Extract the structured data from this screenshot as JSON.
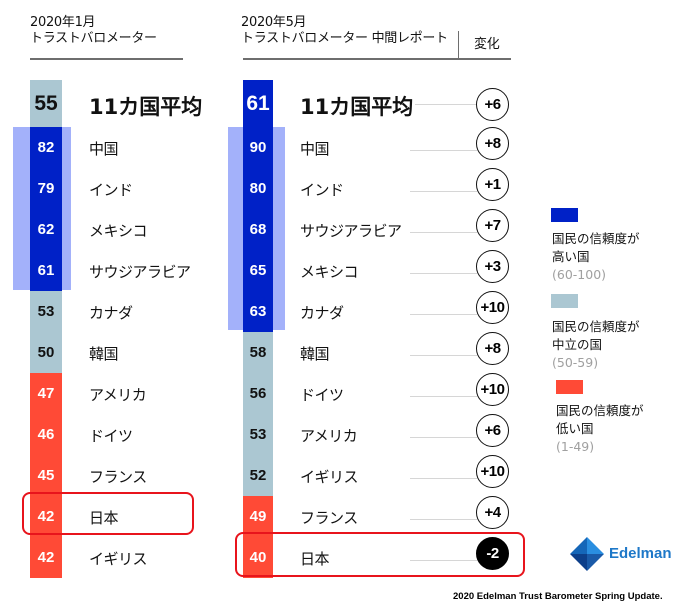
{
  "colors": {
    "high": "#0021c7",
    "neutral": "#abc7d2",
    "low": "#ff4a36",
    "halo": "#a3b1fa",
    "highlight_border": "#e8141c",
    "logo": "#1e78c8"
  },
  "left_header": {
    "line1": "2020年1月",
    "line2": "トラストバロメーター"
  },
  "right_header": {
    "line1": "2020年5月",
    "line2": "トラストバロメーター 中間レポート",
    "change_label": "変化"
  },
  "left_rows": [
    {
      "value": "55",
      "label": "11カ国平均",
      "category": "neutral",
      "average": true
    },
    {
      "value": "82",
      "label": "中国",
      "category": "high"
    },
    {
      "value": "79",
      "label": "インド",
      "category": "high"
    },
    {
      "value": "62",
      "label": "メキシコ",
      "category": "high"
    },
    {
      "value": "61",
      "label": "サウジアラビア",
      "category": "high"
    },
    {
      "value": "53",
      "label": "カナダ",
      "category": "neutral"
    },
    {
      "value": "50",
      "label": "韓国",
      "category": "neutral"
    },
    {
      "value": "47",
      "label": "アメリカ",
      "category": "low"
    },
    {
      "value": "46",
      "label": "ドイツ",
      "category": "low"
    },
    {
      "value": "45",
      "label": "フランス",
      "category": "low"
    },
    {
      "value": "42",
      "label": "日本",
      "category": "low",
      "highlighted": true
    },
    {
      "value": "42",
      "label": "イギリス",
      "category": "low"
    }
  ],
  "right_rows": [
    {
      "value": "61",
      "label": "11カ国平均",
      "category": "high",
      "change": "+6",
      "average": true
    },
    {
      "value": "90",
      "label": "中国",
      "category": "high",
      "change": "+8"
    },
    {
      "value": "80",
      "label": "インド",
      "category": "high",
      "change": "+1"
    },
    {
      "value": "68",
      "label": "サウジアラビア",
      "category": "high",
      "change": "+7"
    },
    {
      "value": "65",
      "label": "メキシコ",
      "category": "high",
      "change": "+3"
    },
    {
      "value": "63",
      "label": "カナダ",
      "category": "high",
      "change": "+10"
    },
    {
      "value": "58",
      "label": "韓国",
      "category": "neutral",
      "change": "+8"
    },
    {
      "value": "56",
      "label": "ドイツ",
      "category": "neutral",
      "change": "+10"
    },
    {
      "value": "53",
      "label": "アメリカ",
      "category": "neutral",
      "change": "+6"
    },
    {
      "value": "52",
      "label": "イギリス",
      "category": "neutral",
      "change": "+10"
    },
    {
      "value": "49",
      "label": "フランス",
      "category": "low",
      "change": "+4"
    },
    {
      "value": "40",
      "label": "日本",
      "category": "low",
      "change": "-2",
      "highlighted": true
    }
  ],
  "legend": [
    {
      "category": "high",
      "line1": "国民の信頼度が",
      "line2": "高い国",
      "range": "(60-100)"
    },
    {
      "category": "neutral",
      "line1": "国民の信頼度が",
      "line2": "中立の国",
      "range": "(50-59)"
    },
    {
      "category": "low",
      "line1": "国民の信頼度が",
      "line2": "低い国",
      "range": "(1-49)"
    }
  ],
  "logo": {
    "name": "Edelman"
  },
  "footer": {
    "source": "2020 Edelman Trust Barometer Spring Update."
  },
  "chart_data": {
    "type": "table",
    "title": "Edelman Trust Barometer: Trust Index by country, January 2020 vs May 2020",
    "columns": [
      "2020年1月 トラストバロメーター",
      "2020年5月 トラストバロメーター 中間レポート",
      "変化"
    ],
    "jan_2020": {
      "11カ国平均": 55,
      "中国": 82,
      "インド": 79,
      "メキシコ": 62,
      "サウジアラビア": 61,
      "カナダ": 53,
      "韓国": 50,
      "アメリカ": 47,
      "ドイツ": 46,
      "フランス": 45,
      "日本": 42,
      "イギリス": 42
    },
    "may_2020": {
      "11カ国平均": 61,
      "中国": 90,
      "インド": 80,
      "サウジアラビア": 68,
      "メキシコ": 65,
      "カナダ": 63,
      "韓国": 58,
      "ドイツ": 56,
      "アメリカ": 53,
      "イギリス": 52,
      "フランス": 49,
      "日本": 40
    },
    "change": {
      "11カ国平均": 6,
      "中国": 8,
      "インド": 1,
      "サウジアラビア": 7,
      "メキシコ": 3,
      "カナダ": 10,
      "韓国": 8,
      "ドイツ": 10,
      "アメリカ": 6,
      "イギリス": 10,
      "フランス": 4,
      "日本": -2
    },
    "legend": [
      {
        "label": "国民の信頼度が高い国",
        "range": [
          60,
          100
        ],
        "color": "#0021c7"
      },
      {
        "label": "国民の信頼度が中立の国",
        "range": [
          50,
          59
        ],
        "color": "#abc7d2"
      },
      {
        "label": "国民の信頼度が低い国",
        "range": [
          1,
          49
        ],
        "color": "#ff4a36"
      }
    ],
    "highlighted": "日本"
  }
}
